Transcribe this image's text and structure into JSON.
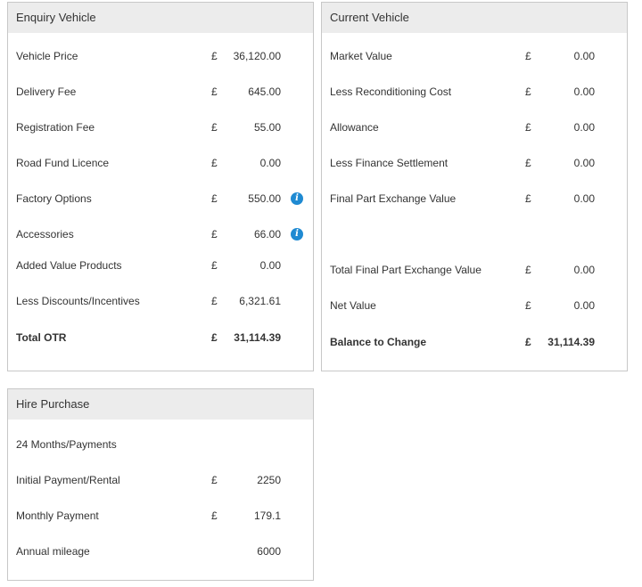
{
  "enquiry": {
    "title": "Enquiry Vehicle",
    "rows": [
      {
        "label": "Vehicle Price",
        "currency": "£",
        "value": "36,120.00"
      },
      {
        "label": "Delivery Fee",
        "currency": "£",
        "value": "645.00"
      },
      {
        "label": "Registration Fee",
        "currency": "£",
        "value": "55.00"
      },
      {
        "label": "Road Fund Licence",
        "currency": "£",
        "value": "0.00"
      },
      {
        "label": "Factory Options",
        "currency": "£",
        "value": "550.00",
        "icon": "info-icon"
      },
      {
        "label": "Accessories",
        "currency": "£",
        "value": "66.00",
        "icon": "info-icon"
      },
      {
        "label": "Added Value Products",
        "currency": "£",
        "value": "0.00"
      },
      {
        "label": "Less Discounts/Incentives",
        "currency": "£",
        "value": "6,321.61"
      }
    ],
    "total": {
      "label": "Total OTR",
      "currency": "£",
      "value": "31,114.39"
    }
  },
  "current": {
    "title": "Current Vehicle",
    "rows": [
      {
        "label": "Market Value",
        "currency": "£",
        "value": "0.00"
      },
      {
        "label": "Less Reconditioning Cost",
        "currency": "£",
        "value": "0.00"
      },
      {
        "label": "Allowance",
        "currency": "£",
        "value": "0.00"
      },
      {
        "label": "Less Finance Settlement",
        "currency": "£",
        "value": "0.00"
      },
      {
        "label": "Final Part Exchange Value",
        "currency": "£",
        "value": "0.00"
      },
      {
        "label": "Total Final Part Exchange Value",
        "currency": "£",
        "value": "0.00"
      },
      {
        "label": "Net Value",
        "currency": "£",
        "value": "0.00"
      }
    ],
    "total": {
      "label": "Balance to Change",
      "currency": "£",
      "value": "31,114.39"
    }
  },
  "hire": {
    "title": "Hire Purchase",
    "term": "24 Months/Payments",
    "rows": [
      {
        "label": "Initial Payment/Rental",
        "currency": "£",
        "value": "2250"
      },
      {
        "label": "Monthly Payment",
        "currency": "£",
        "value": "179.1"
      },
      {
        "label": "Annual mileage",
        "currency": "",
        "value": "6000"
      }
    ]
  },
  "icons": {
    "info_glyph": "i",
    "info_color": "#1f8ad2"
  }
}
